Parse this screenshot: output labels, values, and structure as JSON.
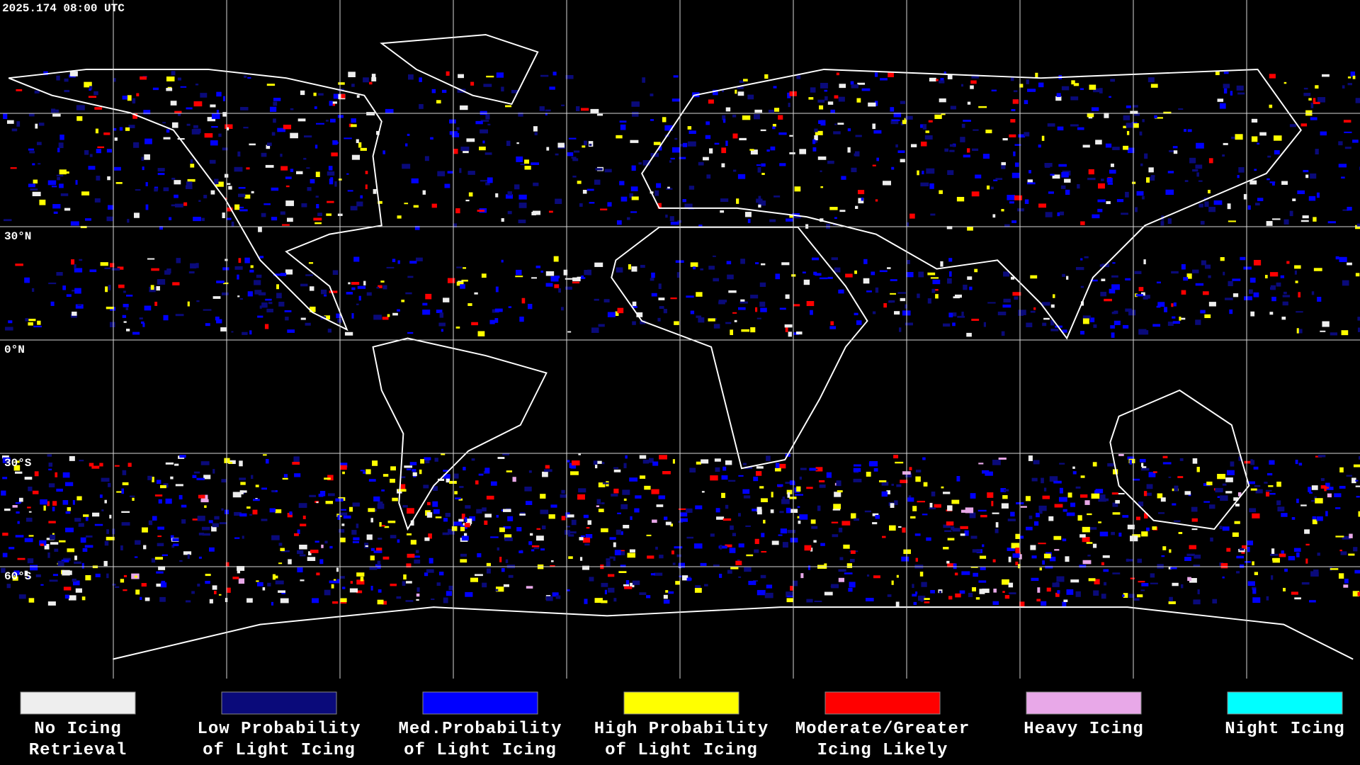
{
  "header": {
    "timestamp": "2025.174 08:00 UTC"
  },
  "map": {
    "latitude_labels": [
      "30°N",
      "0°N",
      "30°S",
      "60°S"
    ]
  },
  "legend": [
    {
      "lines": [
        "No Icing",
        "Retrieval"
      ],
      "color": "#eeeeee"
    },
    {
      "lines": [
        "Low Probability",
        "of Light Icing"
      ],
      "color": "#0a0a7a"
    },
    {
      "lines": [
        "Med.Probability",
        "of Light Icing"
      ],
      "color": "#0000ff"
    },
    {
      "lines": [
        "High Probability",
        "of Light Icing"
      ],
      "color": "#ffff00"
    },
    {
      "lines": [
        "Moderate/Greater",
        "Icing Likely"
      ],
      "color": "#ff0000"
    },
    {
      "lines": [
        "Heavy Icing"
      ],
      "color": "#e8a8e8"
    },
    {
      "lines": [
        "Night Icing"
      ],
      "color": "#00ffff"
    }
  ]
}
